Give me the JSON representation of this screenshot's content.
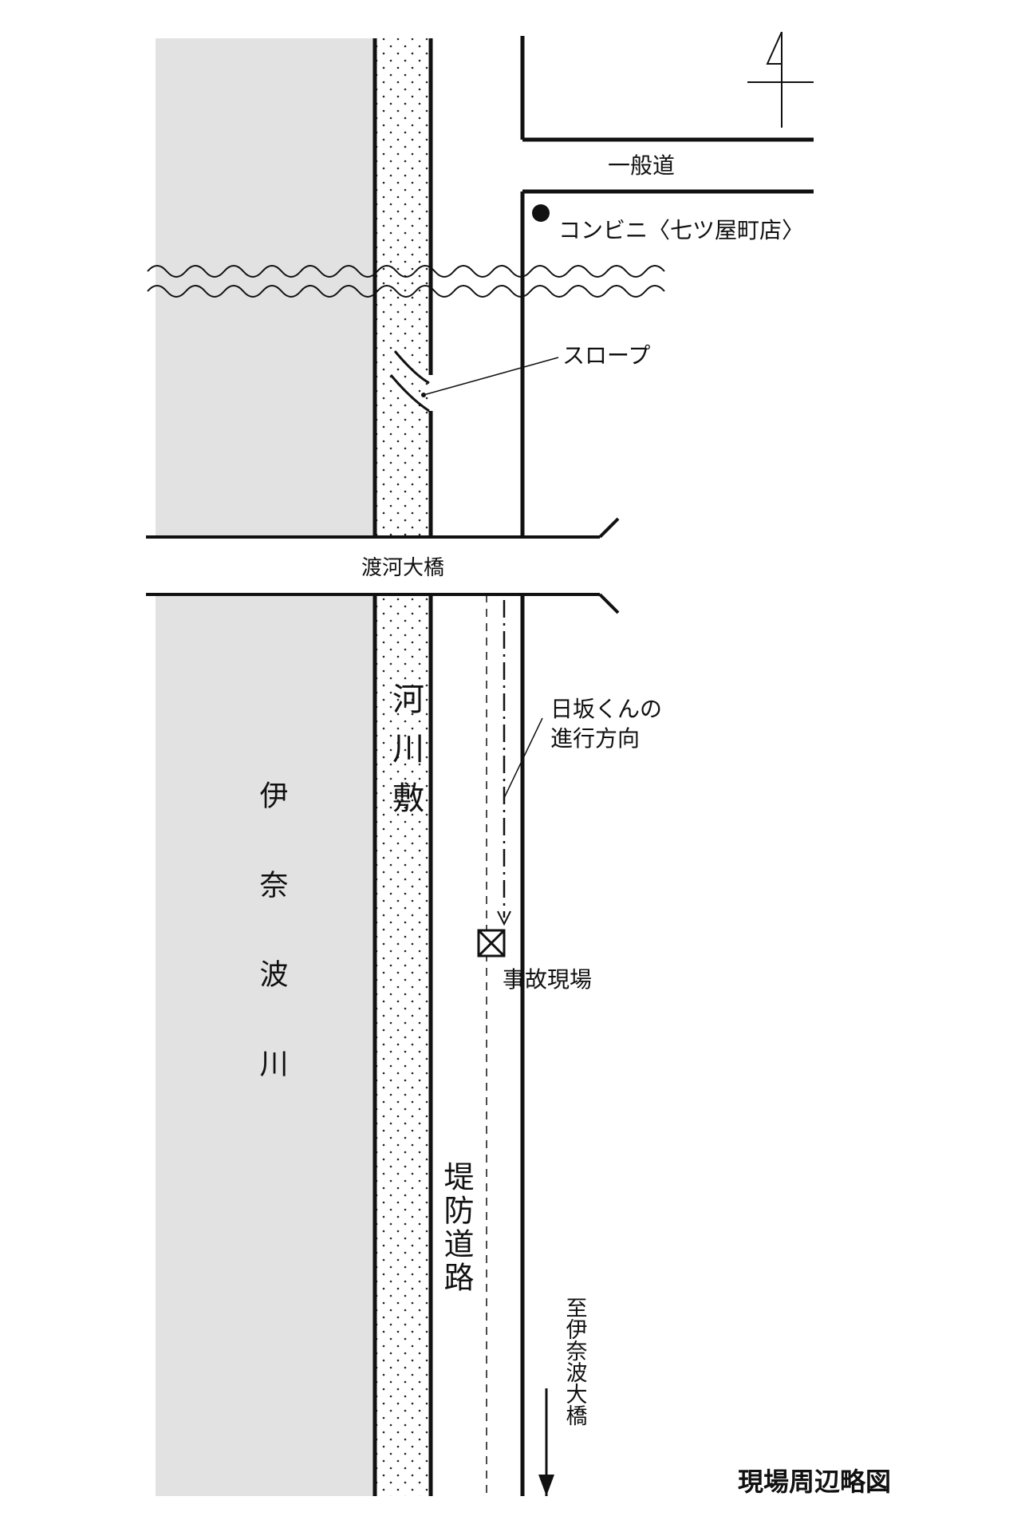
{
  "labels": {
    "general_road": "一般道",
    "convenience_store": "コンビニ〈七ツ屋町店〉",
    "slope": "スロープ",
    "bridge": "渡河大橋",
    "riverbed": "河川敷",
    "river": "伊奈波川",
    "direction_line1": "日坂くんの",
    "direction_line2": "進行方向",
    "accident_site": "事故現場",
    "embankment_road": "堤防道路",
    "to_bridge": "至伊奈波大橋",
    "map_title": "現場周辺略図"
  },
  "colors": {
    "river": "#e2e2e2",
    "ink": "#111111",
    "background": "#ffffff"
  },
  "icons": {
    "north_arrow": "north-arrow-icon",
    "accident_marker": "boxed-x-icon",
    "store_marker": "filled-circle-icon"
  }
}
